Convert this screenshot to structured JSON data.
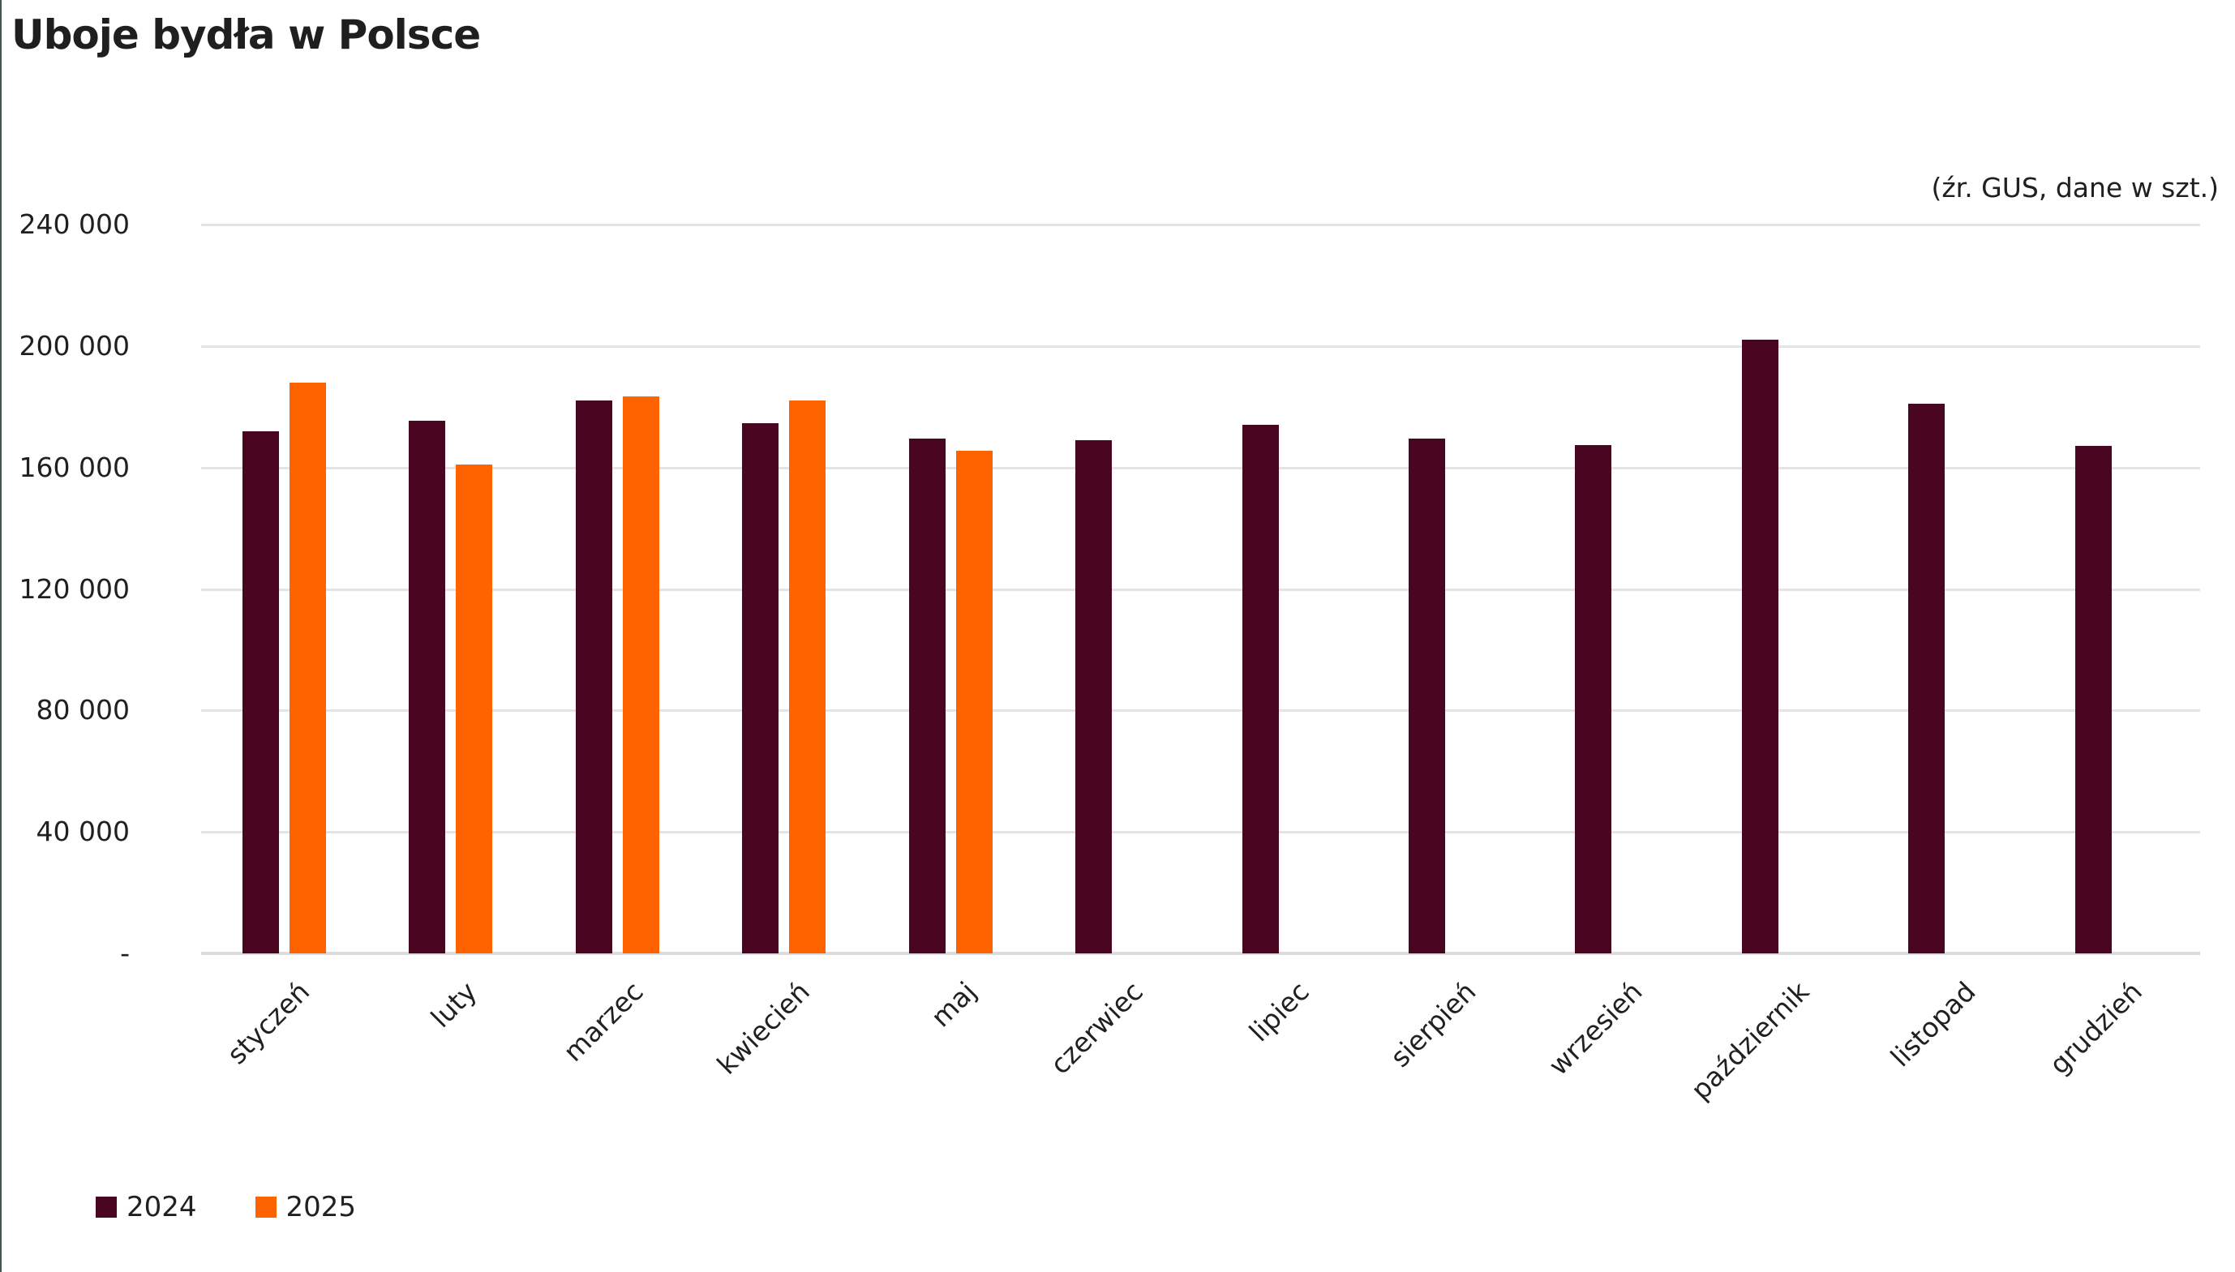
{
  "chart_data": {
    "type": "bar",
    "title": "Uboje bydła w Polsce",
    "note": "(źr. GUS, dane w szt.)",
    "categories": [
      "styczeń",
      "luty",
      "marzec",
      "kwiecień",
      "maj",
      "czerwiec",
      "lipiec",
      "sierpień",
      "wrzesień",
      "październik",
      "listopad",
      "grudzień"
    ],
    "series": [
      {
        "name": "2024",
        "color": "#4A0521",
        "values": [
          172000,
          175500,
          182000,
          174500,
          169500,
          169000,
          174000,
          169500,
          167500,
          202000,
          181000,
          167000
        ]
      },
      {
        "name": "2025",
        "color": "#FD6400",
        "values": [
          188000,
          161000,
          183500,
          182000,
          165500,
          null,
          null,
          null,
          null,
          null,
          null,
          null
        ]
      }
    ],
    "y_axis": {
      "max": 240000,
      "ticks": [
        {
          "value": 240000,
          "label": "240 000"
        },
        {
          "value": 200000,
          "label": "200 000"
        },
        {
          "value": 160000,
          "label": "160 000"
        },
        {
          "value": 120000,
          "label": "120 000"
        },
        {
          "value": 80000,
          "label": "80 000"
        },
        {
          "value": 40000,
          "label": "40 000"
        },
        {
          "value": 0,
          "label": "-"
        }
      ]
    },
    "grid": "horizontal",
    "legend_position": "bottom-left"
  },
  "colors": {
    "gridline": "#E4E4E4",
    "baseline": "#DBDBDB",
    "title_text": "#1F1F1F",
    "axis_text": "#202020",
    "edge_line": "#42584A"
  }
}
